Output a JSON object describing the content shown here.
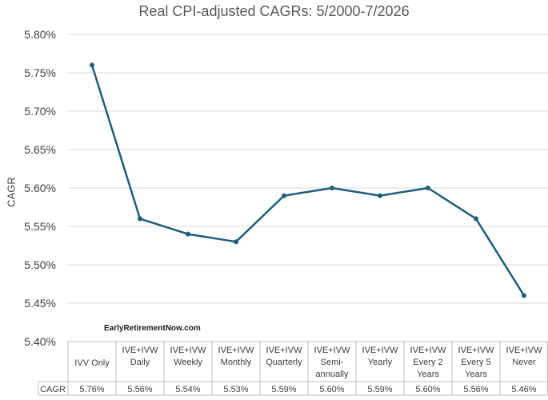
{
  "chart_data": {
    "type": "line",
    "title": "Real CPI-adjusted CAGRs: 5/2000-7/2026",
    "ylabel": "CAGR",
    "xlabel": "",
    "ylim": [
      5.4,
      5.8
    ],
    "y_ticks": [
      "5.40%",
      "5.45%",
      "5.50%",
      "5.55%",
      "5.60%",
      "5.65%",
      "5.70%",
      "5.75%",
      "5.80%"
    ],
    "grid": true,
    "categories": [
      [
        "IVV Only"
      ],
      [
        "IVE+IVW",
        "Daily"
      ],
      [
        "IVE+IVW",
        "Weekly"
      ],
      [
        "IVE+IVW",
        "Monthly"
      ],
      [
        "IVE+IVW",
        "Quarterly"
      ],
      [
        "IVE+IVW",
        "Semi-",
        "annually"
      ],
      [
        "IVE+IVW",
        "Yearly"
      ],
      [
        "IVE+IVW",
        "Every 2",
        "Years"
      ],
      [
        "IVE+IVW",
        "Every 5",
        "Years"
      ],
      [
        "IVE+IVW",
        "Never"
      ]
    ],
    "series": [
      {
        "name": "CAGR",
        "values": [
          5.76,
          5.56,
          5.54,
          5.53,
          5.59,
          5.6,
          5.59,
          5.6,
          5.56,
          5.46
        ]
      }
    ],
    "table_row_label": "CAGR",
    "table_values": [
      "5.76%",
      "5.56%",
      "5.54%",
      "5.53%",
      "5.59%",
      "5.60%",
      "5.59%",
      "5.60%",
      "5.56%",
      "5.46%"
    ],
    "watermark": "EarlyRetirementNow.com",
    "colors": {
      "line": "#1f5e7a",
      "grid": "#d9d9d9",
      "table_border": "#bfbfbf"
    }
  }
}
